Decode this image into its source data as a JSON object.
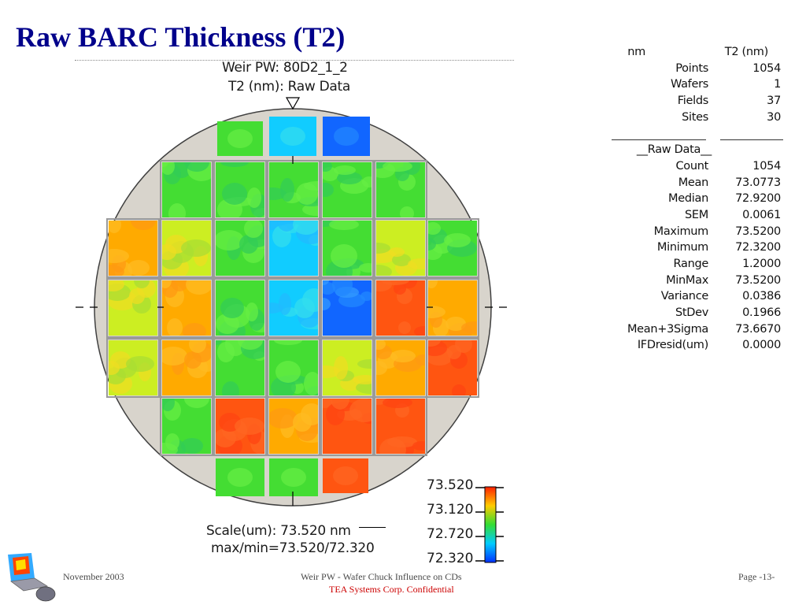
{
  "slide": {
    "title": "Raw BARC Thickness (T2)"
  },
  "wafer_map": {
    "header_line1": "Weir PW: 80D2_1_2",
    "header_line2": "T2 (nm): Raw Data",
    "scale_line1": "Scale(um): 73.520 nm",
    "scale_line2": "max/min=73.520/72.320",
    "legend_ticks": [
      "73.520",
      "73.120",
      "72.720",
      "72.320"
    ],
    "colors": {
      "wafer_bg": "#d8d4cc",
      "high": "#ff3000",
      "mid": "#33dd33",
      "low": "#1030ff"
    }
  },
  "stats": {
    "header_label": "nm",
    "header_value": "T2 (nm)",
    "summary": [
      {
        "label": "Points",
        "value": "1054"
      },
      {
        "label": "Wafers",
        "value": "1"
      },
      {
        "label": "Fields",
        "value": "37"
      },
      {
        "label": "Sites",
        "value": "30"
      }
    ],
    "section_label": "__Raw Data__",
    "raw": [
      {
        "label": "Count",
        "value": "1054"
      },
      {
        "label": "Mean",
        "value": "73.0773"
      },
      {
        "label": "Median",
        "value": "72.9200"
      },
      {
        "label": "SEM",
        "value": "0.0061"
      },
      {
        "label": "Maximum",
        "value": "73.5200"
      },
      {
        "label": "Minimum",
        "value": "72.3200"
      },
      {
        "label": "Range",
        "value": "1.2000"
      },
      {
        "label": "MinMax",
        "value": "73.5200"
      },
      {
        "label": "Variance",
        "value": "0.0386"
      },
      {
        "label": "StDev",
        "value": "0.1966"
      },
      {
        "label": "Mean+3Sigma",
        "value": "73.6670"
      },
      {
        "label": "IFDresid(um)",
        "value": "0.0000"
      }
    ]
  },
  "footer": {
    "date": "November 2003",
    "center": "Weir PW - Wafer Chuck Influence on CDs",
    "confidential": "TEA Systems Corp. Confidential",
    "page": "Page -13-"
  }
}
